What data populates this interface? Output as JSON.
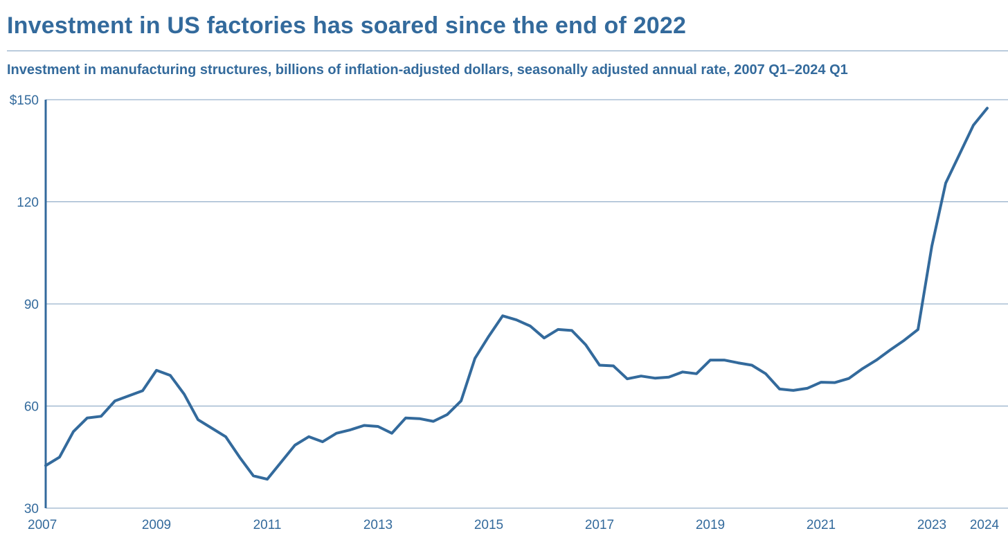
{
  "header": {
    "title": "Investment in US factories has soared since the end of 2022",
    "subtitle": "Investment in manufacturing structures, billions of inflation-adjusted dollars, seasonally adjusted annual rate, 2007 Q1–2024 Q1"
  },
  "colors": {
    "line": "#336a9c",
    "grid": "#7f9fbf",
    "text": "#336a9c"
  },
  "chart_data": {
    "type": "line",
    "title": "Investment in US factories has soared since the end of 2022",
    "subtitle": "Investment in manufacturing structures, billions of inflation-adjusted dollars, seasonally adjusted annual rate, 2007 Q1–2024 Q1",
    "xlabel": "",
    "ylabel": "",
    "xlim": [
      2007.0,
      2024.0
    ],
    "ylim": [
      30,
      150
    ],
    "grid": true,
    "legend": "none",
    "y_ticks": [
      {
        "value": 30,
        "label": "30"
      },
      {
        "value": 60,
        "label": "60"
      },
      {
        "value": 90,
        "label": "90"
      },
      {
        "value": 120,
        "label": "120"
      },
      {
        "value": 150,
        "label": "$150"
      }
    ],
    "x_ticks": [
      {
        "value": 2007,
        "label": "2007"
      },
      {
        "value": 2009,
        "label": "2009"
      },
      {
        "value": 2011,
        "label": "2011"
      },
      {
        "value": 2013,
        "label": "2013"
      },
      {
        "value": 2015,
        "label": "2015"
      },
      {
        "value": 2017,
        "label": "2017"
      },
      {
        "value": 2019,
        "label": "2019"
      },
      {
        "value": 2021,
        "label": "2021"
      },
      {
        "value": 2023,
        "label": "2023"
      },
      {
        "value": 2024,
        "label": "2024"
      }
    ],
    "series": [
      {
        "x": [
          2007.0,
          2007.25,
          2007.5,
          2007.75,
          2008.0,
          2008.25,
          2008.5,
          2008.75,
          2009.0,
          2009.25,
          2009.5,
          2009.75,
          2010.0,
          2010.25,
          2010.5,
          2010.75,
          2011.0,
          2011.25,
          2011.5,
          2011.75,
          2012.0,
          2012.25,
          2012.5,
          2012.75,
          2013.0,
          2013.25,
          2013.5,
          2013.75,
          2014.0,
          2014.25,
          2014.5,
          2014.75,
          2015.0,
          2015.25,
          2015.5,
          2015.75,
          2016.0,
          2016.25,
          2016.5,
          2016.75,
          2017.0,
          2017.25,
          2017.5,
          2017.75,
          2018.0,
          2018.25,
          2018.5,
          2018.75,
          2019.0,
          2019.25,
          2019.5,
          2019.75,
          2020.0,
          2020.25,
          2020.5,
          2020.75,
          2021.0,
          2021.25,
          2021.5,
          2021.75,
          2022.0,
          2022.25,
          2022.5,
          2022.75,
          2023.0,
          2023.25,
          2023.5,
          2023.75,
          2024.0
        ],
        "values": [
          42.5,
          45,
          52.5,
          56.5,
          57,
          61.5,
          63,
          64.5,
          70.5,
          69,
          63.5,
          56,
          53.5,
          51,
          45,
          39.5,
          38.5,
          43.5,
          48.5,
          51,
          49.5,
          52,
          53,
          54.3,
          54,
          52,
          56.5,
          56.3,
          55.5,
          57.5,
          61.5,
          74,
          80.5,
          86.5,
          85.3,
          83.5,
          80,
          82.5,
          82.2,
          78,
          72,
          71.8,
          68,
          68.8,
          68.2,
          68.5,
          70,
          69.5,
          73.5,
          73.5,
          72.7,
          72,
          69.5,
          65,
          64.6,
          65.2,
          67,
          66.9,
          68.1,
          71,
          73.5,
          76.5,
          79.3,
          82.5,
          107,
          125.5,
          134,
          142.5,
          147.5
        ]
      }
    ]
  }
}
